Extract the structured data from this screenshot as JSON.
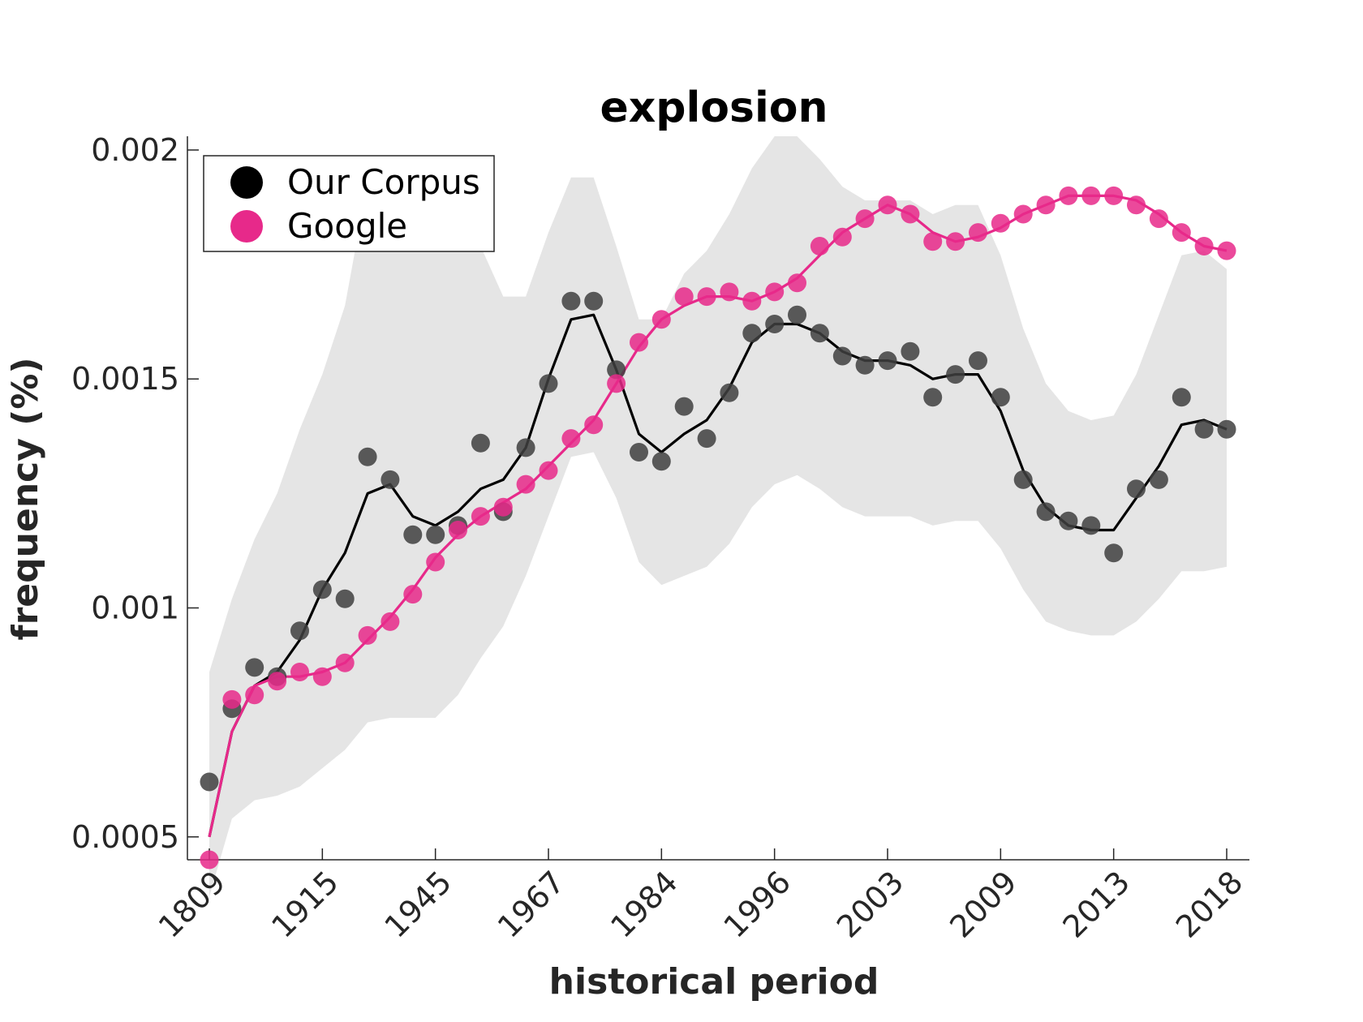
{
  "chart_data": {
    "type": "scatter",
    "title": "explosion",
    "xlabel": "historical period",
    "ylabel": "frequency (%)",
    "x_tick_labels": [
      "1809",
      "1915",
      "1945",
      "1967",
      "1984",
      "1996",
      "2003",
      "2009",
      "2013",
      "2018"
    ],
    "y_ticks": [
      0.0005,
      0.001,
      0.0015,
      0.002
    ],
    "y_tick_labels": [
      "0.0005",
      "0.001",
      "0.0015",
      "0.002"
    ],
    "ylim": [
      0.00045,
      0.00203
    ],
    "legend": {
      "position": "top-left",
      "entries": [
        {
          "label": "Our Corpus",
          "color": "#000000"
        },
        {
          "label": "Google",
          "color": "#e7298a"
        }
      ]
    },
    "colors": {
      "corpus_points": "#404040",
      "corpus_line": "#000000",
      "google": "#e7298a",
      "band": "#e5e5e5"
    },
    "series": [
      {
        "name": "Our Corpus",
        "points": [
          0.00062,
          0.00078,
          0.00087,
          0.00085,
          0.00095,
          0.00104,
          0.00102,
          0.00133,
          0.00128,
          0.00116,
          0.00116,
          0.00118,
          0.00136,
          0.00121,
          0.00135,
          0.00149,
          0.00167,
          0.00167,
          0.00152,
          0.00134,
          0.00132,
          0.00144,
          0.00137,
          0.00147,
          0.0016,
          0.00162,
          0.00164,
          0.0016,
          0.00155,
          0.00153,
          0.00154,
          0.00156,
          0.00146,
          0.00151,
          0.00154,
          0.00146,
          0.00128,
          0.00121,
          0.00119,
          0.00118,
          0.00112,
          0.00126,
          0.00128,
          0.00146,
          0.00139,
          0.00139
        ],
        "line": [
          0.0005,
          0.00073,
          0.00083,
          0.00086,
          0.00093,
          0.00104,
          0.00112,
          0.00125,
          0.00127,
          0.0012,
          0.00118,
          0.00121,
          0.00126,
          0.00128,
          0.00135,
          0.0015,
          0.00163,
          0.00164,
          0.00152,
          0.00138,
          0.00134,
          0.00138,
          0.00141,
          0.00148,
          0.00158,
          0.00162,
          0.00162,
          0.0016,
          0.00156,
          0.00154,
          0.00154,
          0.00153,
          0.0015,
          0.00151,
          0.00151,
          0.00143,
          0.0013,
          0.00122,
          0.00118,
          0.00117,
          0.00117,
          0.00124,
          0.00131,
          0.0014,
          0.00141,
          0.00139
        ]
      },
      {
        "name": "Google",
        "points": [
          0.00045,
          0.0008,
          0.00081,
          0.00084,
          0.00086,
          0.00085,
          0.00088,
          0.00094,
          0.00097,
          0.00103,
          0.0011,
          0.00117,
          0.0012,
          0.00122,
          0.00127,
          0.0013,
          0.00137,
          0.0014,
          0.00149,
          0.00158,
          0.00163,
          0.00168,
          0.00168,
          0.00169,
          0.00167,
          0.00169,
          0.00171,
          0.00179,
          0.00181,
          0.00185,
          0.00188,
          0.00186,
          0.0018,
          0.0018,
          0.00182,
          0.00184,
          0.00186,
          0.00188,
          0.0019,
          0.0019,
          0.0019,
          0.00188,
          0.00185,
          0.00182,
          0.00179,
          0.00178
        ],
        "line": [
          0.0005,
          0.00073,
          0.00083,
          0.00085,
          0.00085,
          0.00086,
          0.00088,
          0.00093,
          0.00098,
          0.00104,
          0.00111,
          0.00116,
          0.0012,
          0.00123,
          0.00126,
          0.00131,
          0.00136,
          0.00141,
          0.00149,
          0.00157,
          0.00163,
          0.00166,
          0.00168,
          0.00168,
          0.00167,
          0.00169,
          0.00172,
          0.00177,
          0.00182,
          0.00185,
          0.00188,
          0.00186,
          0.00182,
          0.0018,
          0.00181,
          0.00183,
          0.00186,
          0.00188,
          0.0019,
          0.0019,
          0.0019,
          0.00189,
          0.00186,
          0.00182,
          0.00179,
          0.00178
        ]
      }
    ],
    "band_upper": [
      0.00086,
      0.00102,
      0.00115,
      0.00125,
      0.00139,
      0.00151,
      0.00166,
      0.00193,
      0.0019,
      0.00178,
      0.00179,
      0.00181,
      0.00179,
      0.00168,
      0.00168,
      0.00182,
      0.00194,
      0.00194,
      0.00179,
      0.00163,
      0.00163,
      0.00173,
      0.00178,
      0.00186,
      0.00196,
      0.00203,
      0.00203,
      0.00198,
      0.00192,
      0.00189,
      0.00189,
      0.00189,
      0.00186,
      0.00188,
      0.00188,
      0.00177,
      0.00161,
      0.00149,
      0.00143,
      0.00141,
      0.00142,
      0.00151,
      0.00164,
      0.00177,
      0.00178,
      0.00174
    ],
    "band_lower": [
      0.00037,
      0.00054,
      0.00058,
      0.00059,
      0.00061,
      0.00065,
      0.00069,
      0.00075,
      0.00076,
      0.00076,
      0.00076,
      0.00081,
      0.00089,
      0.00096,
      0.00107,
      0.0012,
      0.00133,
      0.00134,
      0.00124,
      0.0011,
      0.00105,
      0.00107,
      0.00109,
      0.00114,
      0.00122,
      0.00127,
      0.00129,
      0.00126,
      0.00122,
      0.0012,
      0.0012,
      0.0012,
      0.00118,
      0.00119,
      0.00119,
      0.00113,
      0.00104,
      0.00097,
      0.00095,
      0.00094,
      0.00094,
      0.00097,
      0.00102,
      0.00108,
      0.00108,
      0.00109
    ]
  }
}
